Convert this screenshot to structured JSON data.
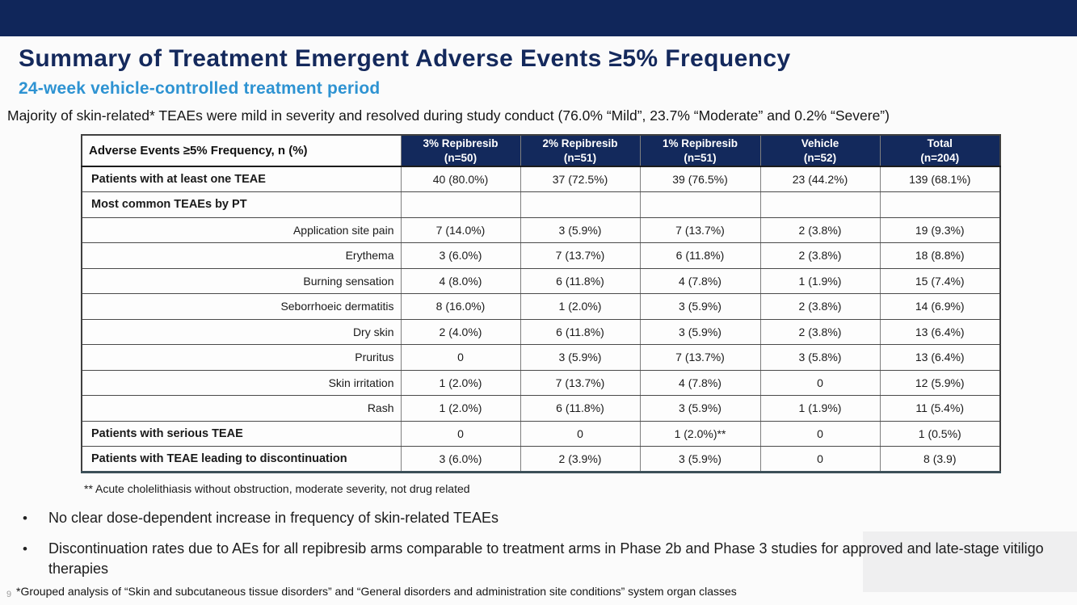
{
  "colors": {
    "top_bar_navy": "#10265a",
    "title_navy": "#14295c",
    "subtitle_blue": "#2e93d2",
    "table_header_bg": "#13295c",
    "table_header_text": "#ffffff",
    "body_text": "#1a1a1a",
    "watermark_gray": "#efeff0"
  },
  "header": {
    "title": "Summary of Treatment Emergent Adverse Events ≥5% Frequency",
    "subtitle": "24-week vehicle-controlled treatment period"
  },
  "lead_text": "Majority of skin-related* TEAEs were mild in severity and resolved during study conduct (76.0% “Mild”, 23.7% “Moderate” and 0.2% “Severe”)",
  "table": {
    "columns": [
      {
        "label": "Adverse Events ≥5% Frequency, n (%)",
        "sub": ""
      },
      {
        "label": "3% Repibresib",
        "sub": "(n=50)"
      },
      {
        "label": "2% Repibresib",
        "sub": "(n=51)"
      },
      {
        "label": "1% Repibresib",
        "sub": "(n=51)"
      },
      {
        "label": "Vehicle",
        "sub": "(n=52)"
      },
      {
        "label": "Total",
        "sub": "(n=204)"
      }
    ],
    "rows": [
      {
        "label": "Patients with at least one TEAE",
        "style": "section",
        "values": [
          "40 (80.0%)",
          "37 (72.5%)",
          "39 (76.5%)",
          "23 (44.2%)",
          "139 (68.1%)"
        ]
      },
      {
        "label": "Most common TEAEs by PT",
        "style": "section",
        "values": [
          "",
          "",
          "",
          "",
          ""
        ]
      },
      {
        "label": "Application site pain",
        "style": "pt",
        "values": [
          "7 (14.0%)",
          "3 (5.9%)",
          "7 (13.7%)",
          "2 (3.8%)",
          "19 (9.3%)"
        ]
      },
      {
        "label": "Erythema",
        "style": "pt",
        "values": [
          "3 (6.0%)",
          "7 (13.7%)",
          "6 (11.8%)",
          "2 (3.8%)",
          "18 (8.8%)"
        ]
      },
      {
        "label": "Burning sensation",
        "style": "pt",
        "values": [
          "4 (8.0%)",
          "6 (11.8%)",
          "4 (7.8%)",
          "1 (1.9%)",
          "15 (7.4%)"
        ]
      },
      {
        "label": "Seborrhoeic dermatitis",
        "style": "pt",
        "values": [
          "8 (16.0%)",
          "1 (2.0%)",
          "3 (5.9%)",
          "2 (3.8%)",
          "14 (6.9%)"
        ]
      },
      {
        "label": "Dry skin",
        "style": "pt",
        "values": [
          "2 (4.0%)",
          "6 (11.8%)",
          "3 (5.9%)",
          "2 (3.8%)",
          "13 (6.4%)"
        ]
      },
      {
        "label": "Pruritus",
        "style": "pt",
        "values": [
          "0",
          "3 (5.9%)",
          "7 (13.7%)",
          "3 (5.8%)",
          "13 (6.4%)"
        ]
      },
      {
        "label": "Skin irritation",
        "style": "pt",
        "values": [
          "1 (2.0%)",
          "7 (13.7%)",
          "4 (7.8%)",
          "0",
          "12 (5.9%)"
        ]
      },
      {
        "label": "Rash",
        "style": "pt",
        "values": [
          "1 (2.0%)",
          "6 (11.8%)",
          "3 (5.9%)",
          "1 (1.9%)",
          "11 (5.4%)"
        ]
      },
      {
        "label": "Patients with serious TEAE",
        "style": "section",
        "values": [
          "0",
          "0",
          "1 (2.0%)**",
          "0",
          "1 (0.5%)"
        ]
      },
      {
        "label": "Patients with TEAE leading to discontinuation",
        "style": "section",
        "values": [
          "3 (6.0%)",
          "2 (3.9%)",
          "3 (5.9%)",
          "0",
          "8 (3.9)"
        ]
      }
    ],
    "footnote": "** Acute cholelithiasis without obstruction, moderate severity, not drug related"
  },
  "bullet_char": "•",
  "bullets": [
    "No clear dose-dependent increase in frequency of skin-related TEAEs",
    "Discontinuation rates due to AEs for all repibresib arms comparable to treatment arms in Phase 2b and Phase 3 studies for approved and late-stage vitiligo therapies"
  ],
  "footer": {
    "slide_number": "9",
    "note": "*Grouped analysis of “Skin and subcutaneous tissue disorders” and “General disorders and administration site conditions” system organ classes"
  }
}
